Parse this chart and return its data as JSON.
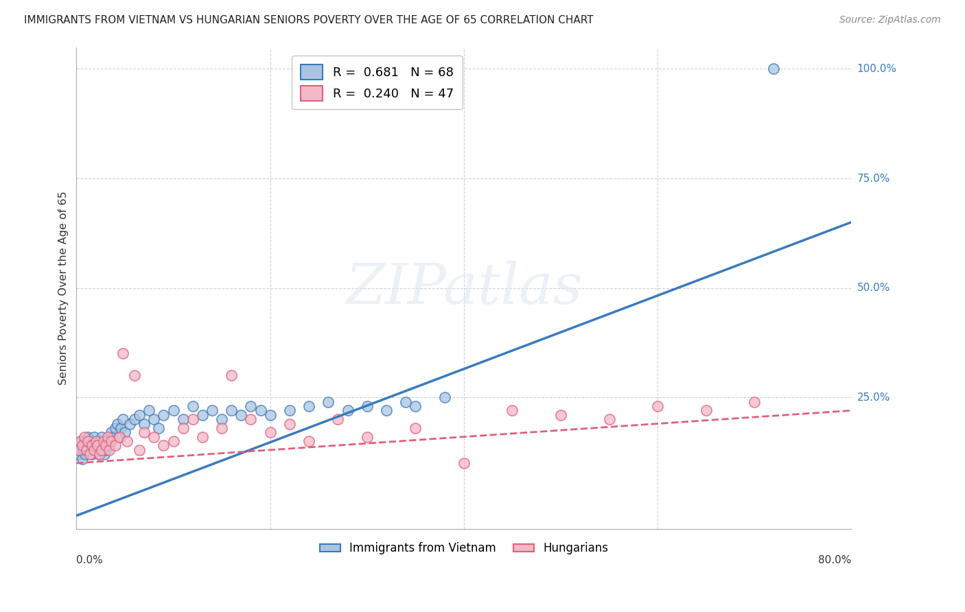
{
  "title": "IMMIGRANTS FROM VIETNAM VS HUNGARIAN SENIORS POVERTY OVER THE AGE OF 65 CORRELATION CHART",
  "source": "Source: ZipAtlas.com",
  "ylabel": "Seniors Poverty Over the Age of 65",
  "background_color": "#ffffff",
  "blue_color": "#aac4e0",
  "pink_color": "#f4b8c8",
  "blue_line_color": "#3a7abf",
  "pink_line_color": "#e0607a",
  "legend_blue_label": "R =  0.681   N = 68",
  "legend_pink_label": "R =  0.240   N = 47",
  "legend1_label": "Immigrants from Vietnam",
  "legend2_label": "Hungarians",
  "xlim": [
    0.0,
    0.8
  ],
  "ylim": [
    -0.05,
    1.05
  ],
  "ytick_vals": [
    0.0,
    0.25,
    0.5,
    0.75,
    1.0
  ],
  "ytick_labels_right": [
    "",
    "25.0%",
    "50.0%",
    "75.0%",
    "100.0%"
  ],
  "grid_yticks": [
    0.25,
    0.5,
    0.75,
    1.0
  ],
  "grid_xticks": [
    0.2,
    0.4,
    0.6
  ],
  "blue_line_x0": 0.0,
  "blue_line_x1": 0.8,
  "blue_line_y0": -0.02,
  "blue_line_y1": 0.65,
  "pink_line_x0": 0.0,
  "pink_line_x1": 0.8,
  "pink_line_y0": 0.1,
  "pink_line_y1": 0.22,
  "blue_scatter_x": [
    0.002,
    0.003,
    0.004,
    0.005,
    0.006,
    0.007,
    0.008,
    0.009,
    0.01,
    0.011,
    0.012,
    0.013,
    0.014,
    0.015,
    0.016,
    0.017,
    0.018,
    0.019,
    0.02,
    0.021,
    0.022,
    0.023,
    0.024,
    0.025,
    0.026,
    0.027,
    0.028,
    0.029,
    0.03,
    0.032,
    0.034,
    0.036,
    0.038,
    0.04,
    0.042,
    0.044,
    0.046,
    0.048,
    0.05,
    0.055,
    0.06,
    0.065,
    0.07,
    0.075,
    0.08,
    0.085,
    0.09,
    0.1,
    0.11,
    0.12,
    0.13,
    0.14,
    0.15,
    0.16,
    0.17,
    0.18,
    0.19,
    0.2,
    0.22,
    0.24,
    0.26,
    0.28,
    0.3,
    0.32,
    0.34,
    0.35,
    0.38,
    0.72
  ],
  "blue_scatter_y": [
    0.12,
    0.14,
    0.13,
    0.15,
    0.11,
    0.13,
    0.15,
    0.12,
    0.14,
    0.13,
    0.16,
    0.14,
    0.13,
    0.15,
    0.12,
    0.14,
    0.16,
    0.13,
    0.14,
    0.15,
    0.13,
    0.12,
    0.15,
    0.14,
    0.16,
    0.13,
    0.14,
    0.12,
    0.13,
    0.15,
    0.14,
    0.17,
    0.16,
    0.18,
    0.19,
    0.16,
    0.18,
    0.2,
    0.17,
    0.19,
    0.2,
    0.21,
    0.19,
    0.22,
    0.2,
    0.18,
    0.21,
    0.22,
    0.2,
    0.23,
    0.21,
    0.22,
    0.2,
    0.22,
    0.21,
    0.23,
    0.22,
    0.21,
    0.22,
    0.23,
    0.24,
    0.22,
    0.23,
    0.22,
    0.24,
    0.23,
    0.25,
    1.0
  ],
  "pink_scatter_x": [
    0.002,
    0.004,
    0.006,
    0.008,
    0.01,
    0.012,
    0.014,
    0.016,
    0.018,
    0.02,
    0.022,
    0.024,
    0.026,
    0.028,
    0.03,
    0.032,
    0.034,
    0.036,
    0.04,
    0.044,
    0.048,
    0.052,
    0.06,
    0.065,
    0.07,
    0.08,
    0.09,
    0.1,
    0.11,
    0.12,
    0.13,
    0.15,
    0.16,
    0.18,
    0.2,
    0.22,
    0.24,
    0.27,
    0.3,
    0.35,
    0.4,
    0.45,
    0.5,
    0.55,
    0.6,
    0.65,
    0.7
  ],
  "pink_scatter_y": [
    0.13,
    0.15,
    0.14,
    0.16,
    0.13,
    0.15,
    0.12,
    0.14,
    0.13,
    0.15,
    0.14,
    0.12,
    0.13,
    0.15,
    0.14,
    0.16,
    0.13,
    0.15,
    0.14,
    0.16,
    0.35,
    0.15,
    0.3,
    0.13,
    0.17,
    0.16,
    0.14,
    0.15,
    0.18,
    0.2,
    0.16,
    0.18,
    0.3,
    0.2,
    0.17,
    0.19,
    0.15,
    0.2,
    0.16,
    0.18,
    0.1,
    0.22,
    0.21,
    0.2,
    0.23,
    0.22,
    0.24
  ]
}
